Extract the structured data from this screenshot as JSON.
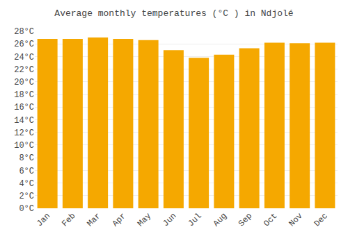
{
  "chart_data": {
    "type": "bar",
    "title": "Average monthly temperatures (°C ) in Ndjolé",
    "categories": [
      "Jan",
      "Feb",
      "Mar",
      "Apr",
      "May",
      "Jun",
      "Jul",
      "Aug",
      "Sep",
      "Oct",
      "Nov",
      "Dec"
    ],
    "values": [
      26.8,
      26.8,
      27.0,
      26.8,
      26.6,
      25.0,
      23.8,
      24.3,
      25.3,
      26.2,
      26.1,
      26.2
    ],
    "color": "#F5A800",
    "ylim": [
      0,
      28
    ],
    "yticks": [
      {
        "value": 0,
        "label": "0°C"
      },
      {
        "value": 2,
        "label": "2°C"
      },
      {
        "value": 4,
        "label": "4°C"
      },
      {
        "value": 6,
        "label": "6°C"
      },
      {
        "value": 8,
        "label": "8°C"
      },
      {
        "value": 10,
        "label": "10°C"
      },
      {
        "value": 12,
        "label": "12°C"
      },
      {
        "value": 14,
        "label": "14°C"
      },
      {
        "value": 16,
        "label": "16°C"
      },
      {
        "value": 18,
        "label": "18°C"
      },
      {
        "value": 20,
        "label": "20°C"
      },
      {
        "value": 22,
        "label": "22°C"
      },
      {
        "value": 24,
        "label": "24°C"
      },
      {
        "value": 26,
        "label": "26°C"
      },
      {
        "value": 28,
        "label": "28°C"
      }
    ],
    "grid": true
  }
}
